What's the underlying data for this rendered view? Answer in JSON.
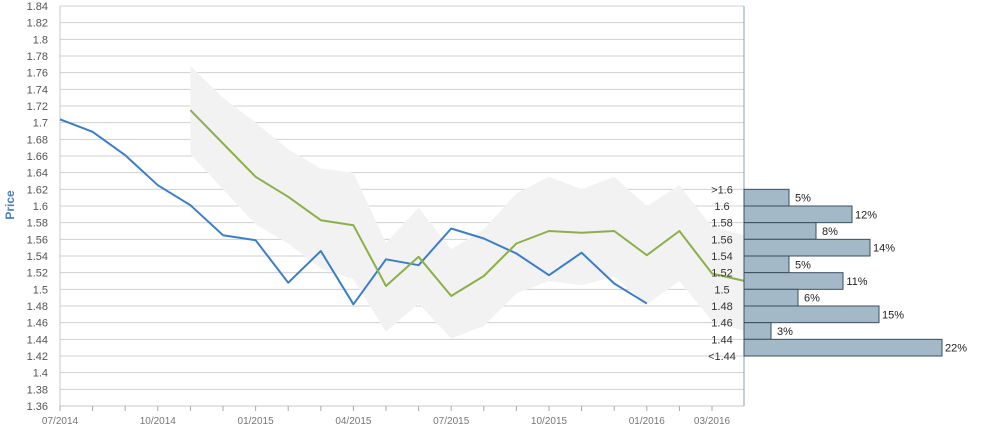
{
  "chart_data": {
    "type": "line",
    "title": "",
    "ylabel": "Price",
    "xlabel": "",
    "ylim": [
      1.36,
      1.84
    ],
    "y_ticks": [
      "1.36",
      "1.38",
      "1.4",
      "1.42",
      "1.44",
      "1.46",
      "1.48",
      "1.5",
      "1.52",
      "1.54",
      "1.56",
      "1.58",
      "1.6",
      "1.62",
      "1.64",
      "1.66",
      "1.68",
      "1.7",
      "1.72",
      "1.74",
      "1.76",
      "1.78",
      "1.8",
      "1.82",
      "1.84"
    ],
    "x_start": "2014-07",
    "x_ticks": [
      "07/2014",
      "10/2014",
      "01/2015",
      "04/2015",
      "07/2015",
      "10/2015",
      "01/2016",
      "03/2016"
    ],
    "grid": true,
    "series": [
      {
        "color": "#3a7ecb",
        "points": [
          [
            "2014-07",
            1.704
          ],
          [
            "2014-08",
            1.689
          ],
          [
            "2014-09",
            1.661
          ],
          [
            "2014-10",
            1.625
          ],
          [
            "2014-11",
            1.601
          ],
          [
            "2014-12",
            1.565
          ],
          [
            "2015-01",
            1.559
          ],
          [
            "2015-02",
            1.508
          ],
          [
            "2015-03",
            1.546
          ],
          [
            "2015-04",
            1.482
          ],
          [
            "2015-05",
            1.536
          ],
          [
            "2015-06",
            1.529
          ],
          [
            "2015-07",
            1.573
          ],
          [
            "2015-08",
            1.561
          ],
          [
            "2015-09",
            1.543
          ],
          [
            "2015-10",
            1.517
          ],
          [
            "2015-11",
            1.544
          ],
          [
            "2015-12",
            1.507
          ],
          [
            "2016-01",
            1.483
          ]
        ]
      },
      {
        "color": "#8bb04a",
        "points": [
          [
            "2014-11",
            1.715
          ],
          [
            "2014-12",
            1.675
          ],
          [
            "2015-01",
            1.635
          ],
          [
            "2015-02",
            1.611
          ],
          [
            "2015-03",
            1.583
          ],
          [
            "2015-04",
            1.577
          ],
          [
            "2015-05",
            1.504
          ],
          [
            "2015-06",
            1.539
          ],
          [
            "2015-07",
            1.492
          ],
          [
            "2015-08",
            1.516
          ],
          [
            "2015-09",
            1.555
          ],
          [
            "2015-10",
            1.57
          ],
          [
            "2015-11",
            1.568
          ],
          [
            "2015-12",
            1.57
          ],
          [
            "2016-01",
            1.541
          ],
          [
            "2016-02",
            1.57
          ],
          [
            "2016-03",
            1.519
          ],
          [
            "2016-04",
            1.51
          ]
        ]
      }
    ],
    "band": {
      "color": "#f2f2f2",
      "points": [
        [
          "2014-11",
          1.662,
          1.768
        ],
        [
          "2014-12",
          1.62,
          1.73
        ],
        [
          "2015-01",
          1.578,
          1.7
        ],
        [
          "2015-02",
          1.555,
          1.668
        ],
        [
          "2015-03",
          1.525,
          1.645
        ],
        [
          "2015-04",
          1.512,
          1.64
        ],
        [
          "2015-05",
          1.449,
          1.556
        ],
        [
          "2015-06",
          1.483,
          1.598
        ],
        [
          "2015-07",
          1.441,
          1.548
        ],
        [
          "2015-08",
          1.456,
          1.572
        ],
        [
          "2015-09",
          1.495,
          1.615
        ],
        [
          "2015-10",
          1.51,
          1.635
        ],
        [
          "2015-11",
          1.505,
          1.62
        ],
        [
          "2015-12",
          1.515,
          1.635
        ],
        [
          "2016-01",
          1.482,
          1.6
        ],
        [
          "2016-02",
          1.51,
          1.625
        ],
        [
          "2016-03",
          1.462,
          1.575
        ],
        [
          "2016-04",
          1.45,
          1.565
        ]
      ]
    },
    "histogram": {
      "color": "#a3b9c8",
      "stroke": "#3b4f5e",
      "bins": [
        {
          "label": ">1.6",
          "pct": 5,
          "text": "5%",
          "ymid": 1.61
        },
        {
          "label": "1.6",
          "pct": 12,
          "text": "12%",
          "ymid": 1.59
        },
        {
          "label": "1.58",
          "pct": 8,
          "text": "8%",
          "ymid": 1.57
        },
        {
          "label": "1.56",
          "pct": 14,
          "text": "14%",
          "ymid": 1.55
        },
        {
          "label": "1.54",
          "pct": 5,
          "text": "5%",
          "ymid": 1.53
        },
        {
          "label": "1.52",
          "pct": 11,
          "text": "11%",
          "ymid": 1.51
        },
        {
          "label": "1.5",
          "pct": 6,
          "text": "6%",
          "ymid": 1.49
        },
        {
          "label": "1.48",
          "pct": 15,
          "text": "15%",
          "ymid": 1.47
        },
        {
          "label": "1.46",
          "pct": 3,
          "text": "3%",
          "ymid": 1.45
        },
        {
          "label": "1.44",
          "pct": 22,
          "text": "22%",
          "ymid": 1.43
        },
        {
          "label": "<1.44",
          "pct": null,
          "text": "",
          "ymid": 1.41
        }
      ]
    }
  }
}
